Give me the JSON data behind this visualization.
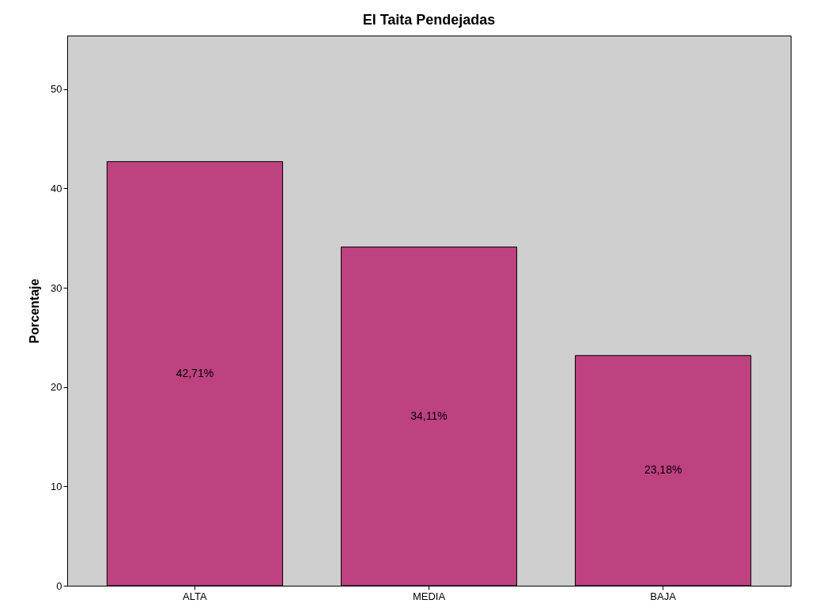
{
  "chart_data": {
    "type": "bar",
    "title": "El Taita Pendejadas",
    "ylabel": "Porcentaje",
    "categories": [
      "ALTA",
      "MEDIA",
      "BAJA"
    ],
    "values": [
      42.71,
      34.11,
      23.18
    ],
    "value_labels": [
      "42,71%",
      "34,11%",
      "23,18%"
    ],
    "color": "#be4180",
    "ylim": [
      0,
      55.4
    ],
    "yticks": [
      0,
      10,
      20,
      30,
      40,
      50
    ],
    "grid": false
  }
}
